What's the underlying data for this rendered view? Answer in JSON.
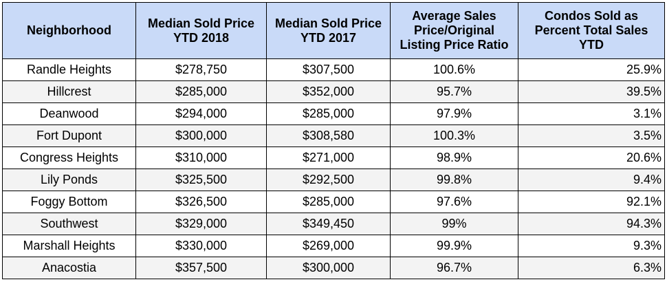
{
  "table": {
    "headers": [
      "Neighborhood",
      "Median Sold Price YTD 2018",
      "Median Sold Price YTD 2017",
      "Average Sales Price/Original Listing Price Ratio",
      "Condos Sold as Percent Total Sales YTD"
    ],
    "rows": [
      [
        "Randle Heights",
        "$278,750",
        "$307,500",
        "100.6%",
        "25.9%"
      ],
      [
        "Hillcrest",
        "$285,000",
        "$352,000",
        "95.7%",
        "39.5%"
      ],
      [
        "Deanwood",
        "$294,000",
        "$285,000",
        "97.9%",
        "3.1%"
      ],
      [
        "Fort Dupont",
        "$300,000",
        "$308,580",
        "100.3%",
        "3.5%"
      ],
      [
        "Congress Heights",
        "$310,000",
        "$271,000",
        "98.9%",
        "20.6%"
      ],
      [
        "Lily Ponds",
        "$325,500",
        "$292,500",
        "99.8%",
        "9.4%"
      ],
      [
        "Foggy Bottom",
        "$326,500",
        "$285,000",
        "97.6%",
        "92.1%"
      ],
      [
        "Southwest",
        "$329,000",
        "$349,450",
        "99%",
        "94.3%"
      ],
      [
        "Marshall Heights",
        "$330,000",
        "$269,000",
        "99.9%",
        "9.3%"
      ],
      [
        "Anacostia",
        "$357,500",
        "$300,000",
        "96.7%",
        "6.3%"
      ]
    ]
  },
  "colors": {
    "header_background": "#c9daf8",
    "stripe_background": "#f3f3f3",
    "border": "#000000"
  }
}
